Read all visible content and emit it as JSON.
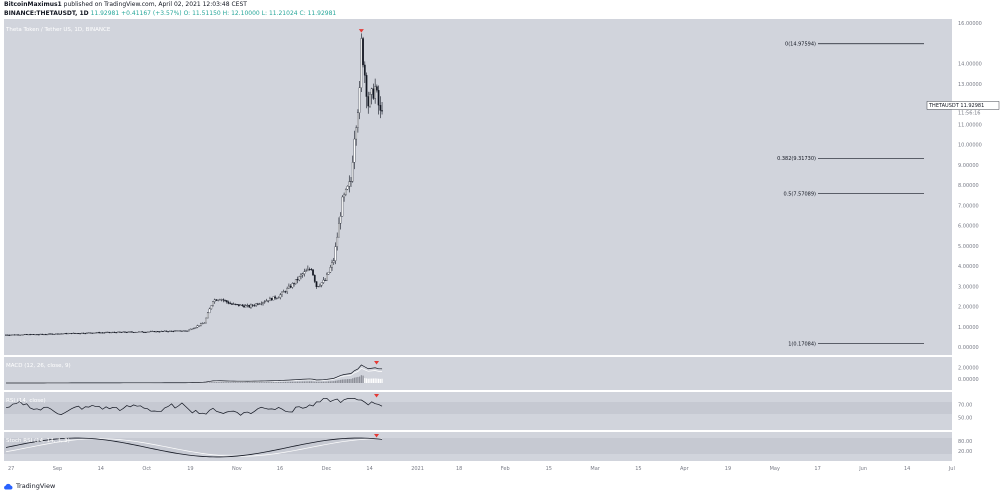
{
  "header": {
    "publisher": "BitcoinMaximus1",
    "published_text": "published on TradingView.com, April 02, 2021 12:03:48 CEST",
    "symbol": "BINANCE:THETAUSDT, 1D",
    "last": "11.92981",
    "change": "+0.41167 (+3.57%)",
    "open": "O: 11.51150",
    "high": "H: 12.10000",
    "low": "L: 11.21024",
    "close": "C: 11.92981"
  },
  "main_pane": {
    "title": "Theta Token / Tether US, 1D, BINANCE",
    "price_labels": [
      "16.00000",
      "14.00000",
      "13.00000",
      "12.00000",
      "11.00000",
      "10.00000",
      "9.00000",
      "8.00000",
      "7.00000",
      "6.00000",
      "5.00000",
      "4.00000",
      "3.00000",
      "2.00000",
      "1.00000",
      "0.00000"
    ],
    "price_tag_symbol": "THETAUSDT",
    "price_tag_value": "11.92981",
    "price_tag_countdown": "11:56:16",
    "fib_levels": [
      {
        "label": "0(14.97594)",
        "ratio": 0,
        "price": 14.97594
      },
      {
        "label": "0.382(9.31730)",
        "ratio": 0.382,
        "price": 9.3173
      },
      {
        "label": "0.5(7.57089)",
        "ratio": 0.5,
        "price": 7.57089
      },
      {
        "label": "1(0.17084)",
        "ratio": 1,
        "price": 0.17084
      }
    ]
  },
  "macd_pane": {
    "title": "MACD (12, 26, close, 9)",
    "labels": [
      "2.00000",
      "0.00000"
    ]
  },
  "rsi_pane": {
    "title": "RSI (14, close)",
    "labels": [
      "70.00",
      "50.00"
    ]
  },
  "stoch_pane": {
    "title": "Stoch RSI (14, 14, 3, 3)",
    "labels": [
      "80.00",
      "20.00"
    ]
  },
  "time_axis": [
    "27",
    "Sep",
    "14",
    "Oct",
    "19",
    "Nov",
    "16",
    "Dec",
    "14",
    "2021",
    "18",
    "Feb",
    "15",
    "Mar",
    "15",
    "Apr",
    "19",
    "May",
    "17",
    "Jun",
    "14",
    "Jul"
  ],
  "footer": {
    "brand": "TradingView"
  },
  "colors": {
    "pane_bg": "#d1d4dc",
    "candle": "#131722",
    "fib_line": "#131722",
    "marker": "#e53935",
    "up_text": "#26a69a"
  },
  "icons": {
    "marker": "red-down-triangle-icon",
    "logo": "tradingview-cloud-icon"
  },
  "chart_data": {
    "type": "candlestick",
    "title": "Theta Token / Tether US, 1D, BINANCE",
    "series": [
      {
        "name": "THETAUSDT",
        "x_start": "2020-08-27",
        "interval": "1D",
        "close_path": [
          [
            "2020-08-27",
            0.6
          ],
          [
            "2020-09-15",
            0.62
          ],
          [
            "2020-10-15",
            0.7
          ],
          [
            "2020-11-15",
            0.75
          ],
          [
            "2020-12-10",
            0.8
          ],
          [
            "2020-12-20",
            1.2
          ],
          [
            "2020-12-25",
            2.3
          ],
          [
            "2020-12-29",
            2.4
          ],
          [
            "2021-01-05",
            2.1
          ],
          [
            "2021-01-15",
            2.0
          ],
          [
            "2021-01-25",
            2.3
          ],
          [
            "2021-02-01",
            2.5
          ],
          [
            "2021-02-08",
            3.0
          ],
          [
            "2021-02-15",
            3.6
          ],
          [
            "2021-02-20",
            3.9
          ],
          [
            "2021-02-23",
            3.0
          ],
          [
            "2021-02-28",
            3.3
          ],
          [
            "2021-03-05",
            4.3
          ],
          [
            "2021-03-10",
            7.2
          ],
          [
            "2021-03-15",
            8.2
          ],
          [
            "2021-03-17",
            10.5
          ],
          [
            "2021-03-20",
            12.5
          ],
          [
            "2021-03-21",
            15.0
          ],
          [
            "2021-03-25",
            12.0
          ],
          [
            "2021-03-29",
            12.8
          ],
          [
            "2021-04-01",
            11.5
          ],
          [
            "2021-04-02",
            11.93
          ]
        ]
      }
    ],
    "ylim": [
      0,
      16
    ],
    "fib_retracement": {
      "high": 14.97594,
      "low": 0.17084,
      "levels": [
        0,
        0.382,
        0.5,
        1
      ]
    }
  }
}
